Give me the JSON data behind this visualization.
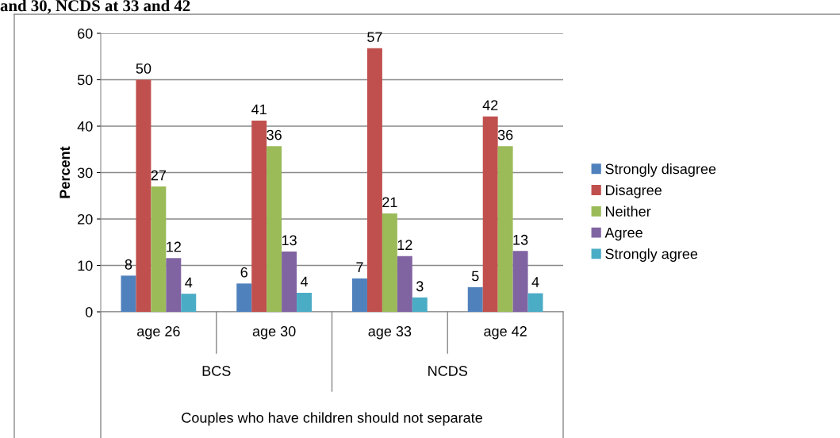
{
  "chart_data": {
    "type": "bar",
    "title": "and 30, NCDS at 33 and 42",
    "ylabel": "Percent",
    "categories": [
      "age 26",
      "age 30",
      "age 33",
      "age 42"
    ],
    "annotations": [
      "BCS",
      "NCDS",
      "Couples who have children should not separate"
    ],
    "series": [
      {
        "name": "Strongly disagree",
        "color": "#4f81bd",
        "values": [
          7.8,
          6.1,
          7.2,
          5.3
        ],
        "value_labels": [
          "8",
          "6",
          "7",
          "5"
        ]
      },
      {
        "name": "Disagree",
        "color": "#c0504d",
        "values": [
          50,
          41.2,
          56.8,
          42.1
        ],
        "value_labels": [
          "50",
          "41",
          "57",
          "42"
        ]
      },
      {
        "name": "Neither",
        "color": "#9bbb59",
        "values": [
          27,
          35.7,
          21.2,
          35.7
        ],
        "value_labels": [
          "27",
          "36",
          "21",
          "36"
        ]
      },
      {
        "name": "Agree",
        "color": "#8064a2",
        "values": [
          11.6,
          13,
          12,
          13.1
        ],
        "value_labels": [
          "12",
          "13",
          "12",
          "13"
        ]
      },
      {
        "name": "Strongly agree",
        "color": "#4bacc6",
        "values": [
          3.9,
          4.1,
          3.1,
          4.0
        ],
        "value_labels": [
          "4",
          "4",
          "3",
          "4"
        ]
      }
    ],
    "ylim": [
      0,
      60
    ],
    "yticks": [
      0,
      10,
      20,
      30,
      40,
      50,
      60
    ],
    "grid": "y",
    "legend": "right"
  }
}
